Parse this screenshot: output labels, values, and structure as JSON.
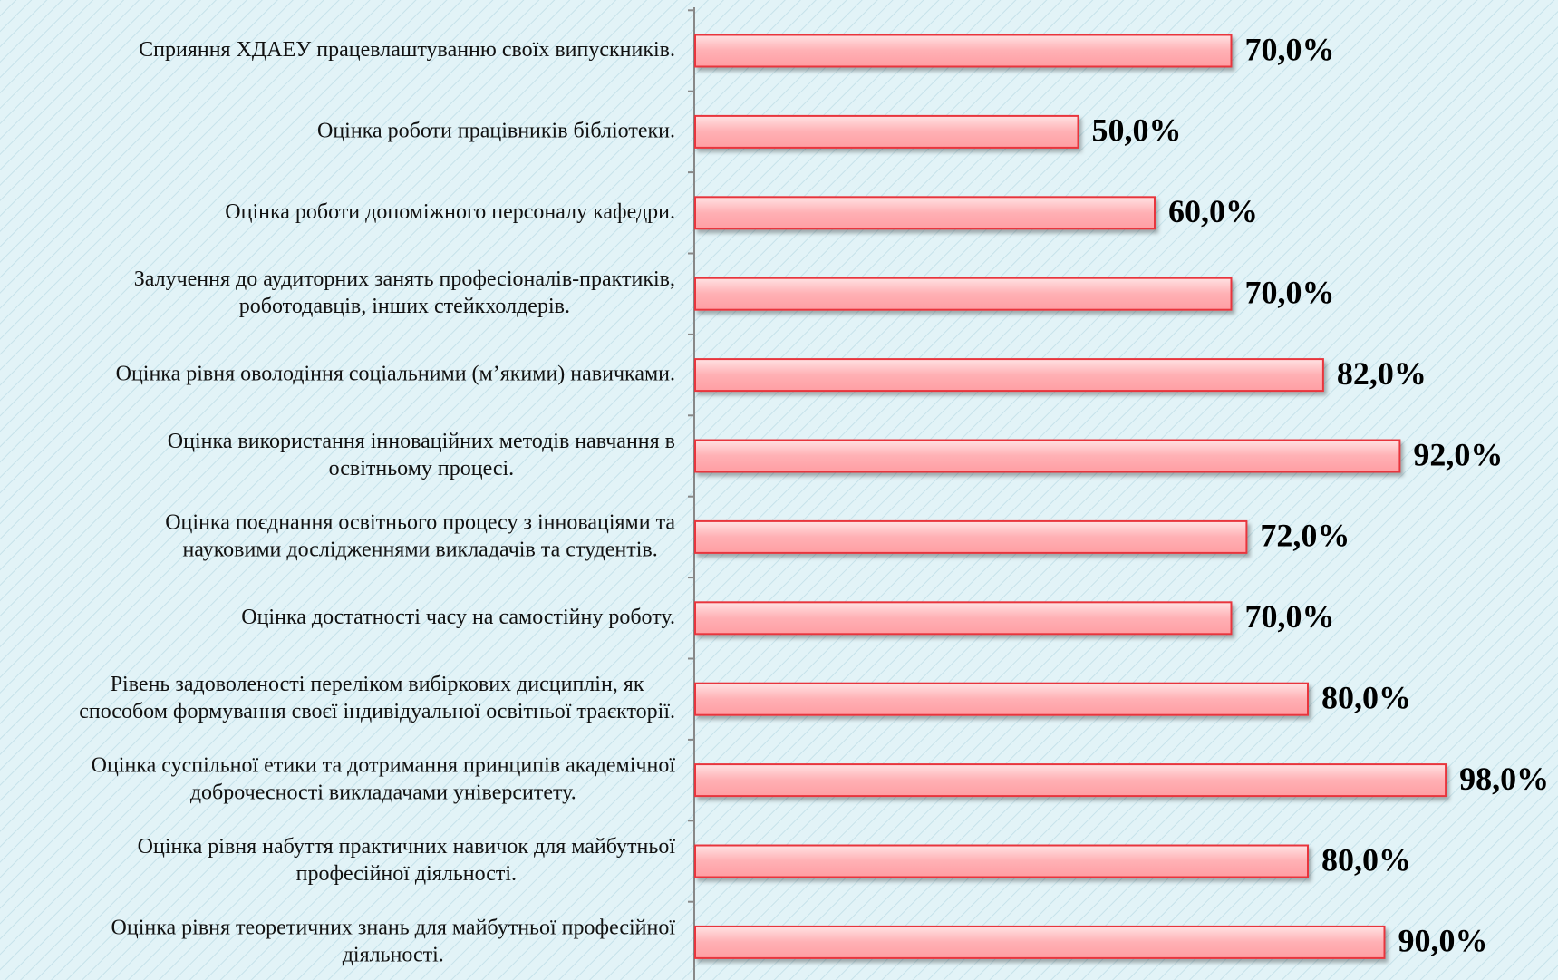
{
  "chart_data": {
    "type": "bar",
    "orientation": "horizontal",
    "categories": [
      "Сприяння ХДАЕУ працевлаштуванню своїх випускників.",
      "Оцінка роботи працівників бібліотеки.",
      "Оцінка роботи допоміжного персоналу кафедри.",
      "Залучення до аудиторних занять професіоналів-практиків,\nроботодавців, інших стейкхолдерів.",
      "Оцінка рівня оволодіння соціальними (м’якими) навичками.",
      "Оцінка використання інноваційних методів навчання в\nосвітньому процесі.",
      "Оцінка поєднання освітнього процесу з інноваціями та\nнауковими дослідженнями викладачів та студентів.",
      "Оцінка достатності часу на самостійну роботу.",
      "Рівень задоволеності переліком вибіркових дисциплін, як\nспособом формування своєї індивідуальної освітньої траєкторії.",
      "Оцінка суспільної етики та дотримання принципів академічної\nдоброчесності викладачами університету.",
      "Оцінка рівня набуття практичних навичок для майбутньої\nпрофесійної діяльності.",
      "Оцінка рівня теоретичних знань для майбутньої професійної\nдіяльності."
    ],
    "values": [
      70,
      50,
      60,
      70,
      82,
      92,
      72,
      70,
      80,
      98,
      80,
      90
    ],
    "value_labels": [
      "70,0%",
      "50,0%",
      "60,0%",
      "70,0%",
      "82,0%",
      "92,0%",
      "72,0%",
      "70,0%",
      "80,0%",
      "98,0%",
      "80,0%",
      "90,0%"
    ],
    "color": "#ffb0b4",
    "xlim": [
      0,
      100
    ]
  }
}
